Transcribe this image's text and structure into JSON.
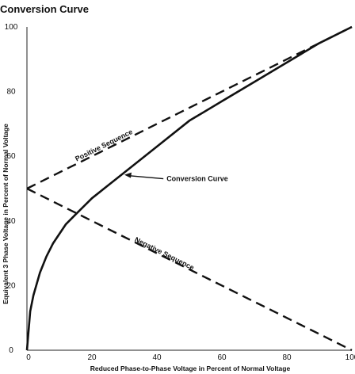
{
  "chart_data": {
    "type": "line",
    "title": "Conversion Curve",
    "xlabel": "Reduced Phase-to-Phase Voltage in Percent of Normal Voltage",
    "ylabel": "Equivalent 3 Phase Voltage in Percent of Normal Voltage",
    "xlim": [
      0,
      100
    ],
    "ylim": [
      0,
      100
    ],
    "xticks": [
      0,
      20,
      40,
      60,
      80,
      100
    ],
    "yticks": [
      0,
      20,
      40,
      60,
      80,
      100
    ],
    "xtick_labels": [
      "0",
      "20",
      "40",
      "60",
      "80",
      "100"
    ],
    "ytick_labels": [
      "0",
      "20",
      "40",
      "60",
      "80",
      "100"
    ],
    "grid": false,
    "series": [
      {
        "name": "Conversion Curve",
        "style": "solid",
        "color": "#111111",
        "x": [
          0,
          1,
          2,
          4,
          6,
          8,
          10,
          12,
          15,
          20,
          25,
          30,
          40,
          50,
          60,
          70,
          80,
          90,
          100
        ],
        "y": [
          0,
          12,
          17,
          24,
          29,
          33,
          36,
          39,
          42,
          47,
          51,
          55,
          63,
          71,
          77,
          83,
          89,
          95,
          100
        ]
      },
      {
        "name": "Positive Sequence",
        "style": "dashed",
        "color": "#111111",
        "x": [
          0,
          100
        ],
        "y": [
          50,
          100
        ]
      },
      {
        "name": "Negative Sequence",
        "style": "dashed",
        "color": "#111111",
        "x": [
          0,
          100
        ],
        "y": [
          50,
          0
        ]
      }
    ],
    "annotations": [
      {
        "text": "Conversion Curve",
        "target_series": "Conversion Curve",
        "arrow": true
      },
      {
        "text": "Positive Sequence",
        "target_series": "Positive Sequence"
      },
      {
        "text": "Negative Sequence",
        "target_series": "Negative Sequence"
      }
    ]
  }
}
